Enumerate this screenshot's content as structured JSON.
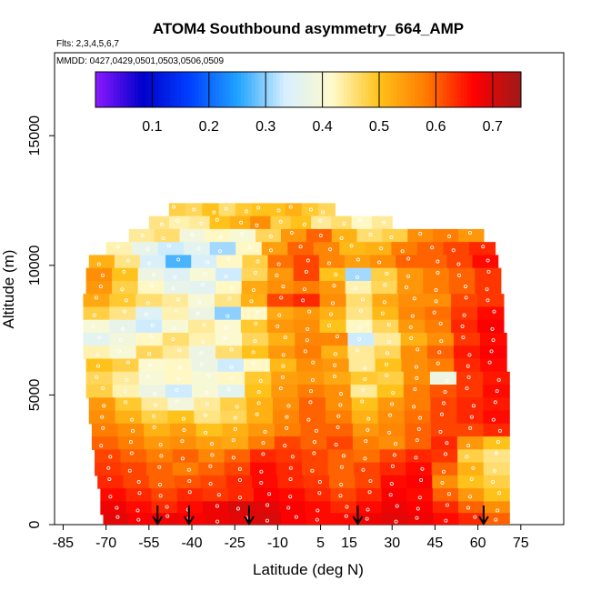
{
  "chart_data": {
    "type": "heatmap",
    "title": "ATOM4 Southbound asymmetry_664_AMP",
    "subtitle": "Flts: 2,3,4,5,6,7",
    "annotation": "MMDD: 0427,0429,0501,0503,0506,0509",
    "xlabel": "Latitude (deg N)",
    "ylabel": "Altitude (m)",
    "xlim": [
      -88,
      90
    ],
    "ylim": [
      0,
      18200
    ],
    "x_ticks": [
      -85,
      -70,
      -55,
      -40,
      -25,
      -10,
      5,
      15,
      30,
      45,
      60,
      75
    ],
    "x_tick_labels": [
      "-85",
      "-70",
      "-55",
      "-40",
      "-25",
      "-10",
      "5",
      "15",
      "30",
      "45",
      "60",
      "75"
    ],
    "y_ticks": [
      0,
      5000,
      10000,
      15000
    ],
    "y_tick_labels": [
      "0",
      "5000",
      "10000",
      "15000"
    ],
    "colorbar": {
      "range": [
        0.0,
        0.75
      ],
      "ticks": [
        0.1,
        0.2,
        0.3,
        0.4,
        0.5,
        0.6,
        0.7
      ],
      "tick_labels": [
        "0.1",
        "0.2",
        "0.3",
        "0.4",
        "0.5",
        "0.6",
        "0.7"
      ],
      "colors": [
        "#8c1aff",
        "#0000cc",
        "#0040ff",
        "#1fa2ff",
        "#d6efff",
        "#fffacc",
        "#ffc21a",
        "#ff7a00",
        "#ff0000",
        "#9e1a1a"
      ]
    },
    "vertical_profile_markers_lat": [
      -52,
      -41,
      -20,
      18,
      62
    ],
    "layers": [
      {
        "alt": 12150,
        "lat_min": -48,
        "lat_max": 10,
        "values": [
          0.48,
          0.47,
          0.5,
          0.46,
          0.49,
          0.5,
          0.5,
          0.52,
          0.49,
          0.47
        ]
      },
      {
        "alt": 11650,
        "lat_min": -55,
        "lat_max": 30,
        "values": [
          0.45,
          0.43,
          0.44,
          0.5,
          0.52,
          0.56,
          0.48,
          0.5,
          0.44,
          0.46,
          0.42,
          0.44
        ]
      },
      {
        "alt": 11150,
        "lat_min": -62,
        "lat_max": 62,
        "values": [
          0.44,
          0.46,
          0.39,
          0.42,
          0.4,
          0.47,
          0.55,
          0.6,
          0.52,
          0.46,
          0.48,
          0.56,
          0.58,
          0.55
        ]
      },
      {
        "alt": 10650,
        "lat_min": -70,
        "lat_max": 66,
        "values": [
          0.43,
          0.37,
          0.33,
          0.36,
          0.31,
          0.42,
          0.54,
          0.6,
          0.57,
          0.51,
          0.52,
          0.58,
          0.6,
          0.62,
          0.64
        ]
      },
      {
        "alt": 10150,
        "lat_min": -76,
        "lat_max": 67,
        "values": [
          0.52,
          0.45,
          0.34,
          0.27,
          0.34,
          0.42,
          0.48,
          0.59,
          0.62,
          0.57,
          0.54,
          0.56,
          0.6,
          0.6,
          0.62,
          0.66
        ]
      },
      {
        "alt": 9650,
        "lat_min": -77,
        "lat_max": 68,
        "values": [
          0.56,
          0.5,
          0.38,
          0.35,
          0.4,
          0.33,
          0.47,
          0.55,
          0.62,
          0.5,
          0.31,
          0.48,
          0.55,
          0.58,
          0.6,
          0.63
        ]
      },
      {
        "alt": 9150,
        "lat_min": -77,
        "lat_max": 68,
        "values": [
          0.55,
          0.48,
          0.42,
          0.37,
          0.36,
          0.42,
          0.53,
          0.56,
          0.58,
          0.55,
          0.43,
          0.47,
          0.55,
          0.58,
          0.6,
          0.63
        ]
      },
      {
        "alt": 8650,
        "lat_min": -78,
        "lat_max": 69,
        "values": [
          0.53,
          0.49,
          0.46,
          0.44,
          0.4,
          0.45,
          0.52,
          0.62,
          0.64,
          0.56,
          0.46,
          0.53,
          0.56,
          0.56,
          0.62,
          0.63
        ]
      },
      {
        "alt": 8150,
        "lat_min": -78,
        "lat_max": 69,
        "values": [
          0.48,
          0.45,
          0.35,
          0.43,
          0.38,
          0.3,
          0.42,
          0.53,
          0.55,
          0.52,
          0.45,
          0.51,
          0.57,
          0.59,
          0.63,
          0.66
        ]
      },
      {
        "alt": 7650,
        "lat_min": -78,
        "lat_max": 69,
        "values": [
          0.4,
          0.37,
          0.33,
          0.4,
          0.44,
          0.41,
          0.49,
          0.55,
          0.56,
          0.5,
          0.42,
          0.47,
          0.55,
          0.58,
          0.64,
          0.67
        ]
      },
      {
        "alt": 7150,
        "lat_min": -78,
        "lat_max": 70,
        "values": [
          0.36,
          0.39,
          0.42,
          0.46,
          0.43,
          0.41,
          0.47,
          0.52,
          0.57,
          0.57,
          0.33,
          0.44,
          0.52,
          0.56,
          0.63,
          0.66
        ]
      },
      {
        "alt": 6650,
        "lat_min": -78,
        "lat_max": 70,
        "values": [
          0.43,
          0.4,
          0.47,
          0.44,
          0.38,
          0.46,
          0.5,
          0.55,
          0.58,
          0.52,
          0.44,
          0.47,
          0.56,
          0.6,
          0.65,
          0.67
        ]
      },
      {
        "alt": 6150,
        "lat_min": -77,
        "lat_max": 70,
        "values": [
          0.5,
          0.48,
          0.41,
          0.42,
          0.38,
          0.33,
          0.42,
          0.51,
          0.56,
          0.55,
          0.44,
          0.5,
          0.56,
          0.58,
          0.64,
          0.66
        ]
      },
      {
        "alt": 5650,
        "lat_min": -77,
        "lat_max": 71,
        "values": [
          0.47,
          0.44,
          0.4,
          0.42,
          0.4,
          0.42,
          0.49,
          0.54,
          0.55,
          0.53,
          0.49,
          0.48,
          0.56,
          0.38,
          0.63,
          0.65
        ]
      },
      {
        "alt": 5150,
        "lat_min": -77,
        "lat_max": 71,
        "values": [
          0.48,
          0.43,
          0.38,
          0.33,
          0.4,
          0.36,
          0.5,
          0.55,
          0.58,
          0.56,
          0.44,
          0.5,
          0.58,
          0.61,
          0.63,
          0.66
        ]
      },
      {
        "alt": 4650,
        "lat_min": -76,
        "lat_max": 71,
        "values": [
          0.55,
          0.49,
          0.44,
          0.39,
          0.44,
          0.48,
          0.52,
          0.56,
          0.6,
          0.56,
          0.5,
          0.55,
          0.58,
          0.62,
          0.64,
          0.65
        ]
      },
      {
        "alt": 4150,
        "lat_min": -76,
        "lat_max": 71,
        "values": [
          0.56,
          0.52,
          0.48,
          0.5,
          0.45,
          0.47,
          0.52,
          0.57,
          0.6,
          0.58,
          0.52,
          0.56,
          0.59,
          0.62,
          0.64,
          0.66
        ]
      },
      {
        "alt": 3650,
        "lat_min": -75,
        "lat_max": 71,
        "values": [
          0.58,
          0.56,
          0.52,
          0.54,
          0.5,
          0.52,
          0.55,
          0.58,
          0.6,
          0.6,
          0.55,
          0.57,
          0.6,
          0.62,
          0.62,
          0.64
        ]
      },
      {
        "alt": 3150,
        "lat_min": -75,
        "lat_max": 71,
        "values": [
          0.6,
          0.58,
          0.55,
          0.56,
          0.54,
          0.53,
          0.58,
          0.62,
          0.6,
          0.62,
          0.58,
          0.56,
          0.6,
          0.64,
          0.55,
          0.5
        ]
      },
      {
        "alt": 2650,
        "lat_min": -74,
        "lat_max": 71,
        "values": [
          0.62,
          0.6,
          0.58,
          0.6,
          0.57,
          0.6,
          0.64,
          0.63,
          0.62,
          0.6,
          0.59,
          0.62,
          0.64,
          0.63,
          0.48,
          0.45
        ]
      },
      {
        "alt": 2150,
        "lat_min": -74,
        "lat_max": 71,
        "values": [
          0.63,
          0.62,
          0.6,
          0.58,
          0.6,
          0.62,
          0.66,
          0.64,
          0.62,
          0.6,
          0.62,
          0.64,
          0.66,
          0.6,
          0.52,
          0.46
        ]
      },
      {
        "alt": 1650,
        "lat_min": -73,
        "lat_max": 71,
        "values": [
          0.64,
          0.62,
          0.6,
          0.61,
          0.62,
          0.64,
          0.66,
          0.64,
          0.63,
          0.6,
          0.62,
          0.66,
          0.67,
          0.56,
          0.5,
          0.48
        ]
      },
      {
        "alt": 1150,
        "lat_min": -72,
        "lat_max": 71,
        "values": [
          0.66,
          0.64,
          0.62,
          0.64,
          0.63,
          0.64,
          0.67,
          0.66,
          0.64,
          0.62,
          0.64,
          0.67,
          0.66,
          0.6,
          0.55,
          0.5
        ]
      },
      {
        "alt": 650,
        "lat_min": -72,
        "lat_max": 71,
        "values": [
          0.68,
          0.66,
          0.64,
          0.66,
          0.68,
          0.7,
          0.69,
          0.67,
          0.66,
          0.64,
          0.66,
          0.68,
          0.67,
          0.64,
          0.6,
          0.56
        ]
      },
      {
        "alt": 200,
        "lat_min": -71,
        "lat_max": 71,
        "values": [
          0.69,
          0.67,
          0.68,
          0.67,
          0.68,
          0.69,
          0.7,
          0.67,
          0.66,
          0.66,
          0.68,
          0.69,
          0.68,
          0.66,
          0.64,
          0.6
        ]
      }
    ]
  }
}
